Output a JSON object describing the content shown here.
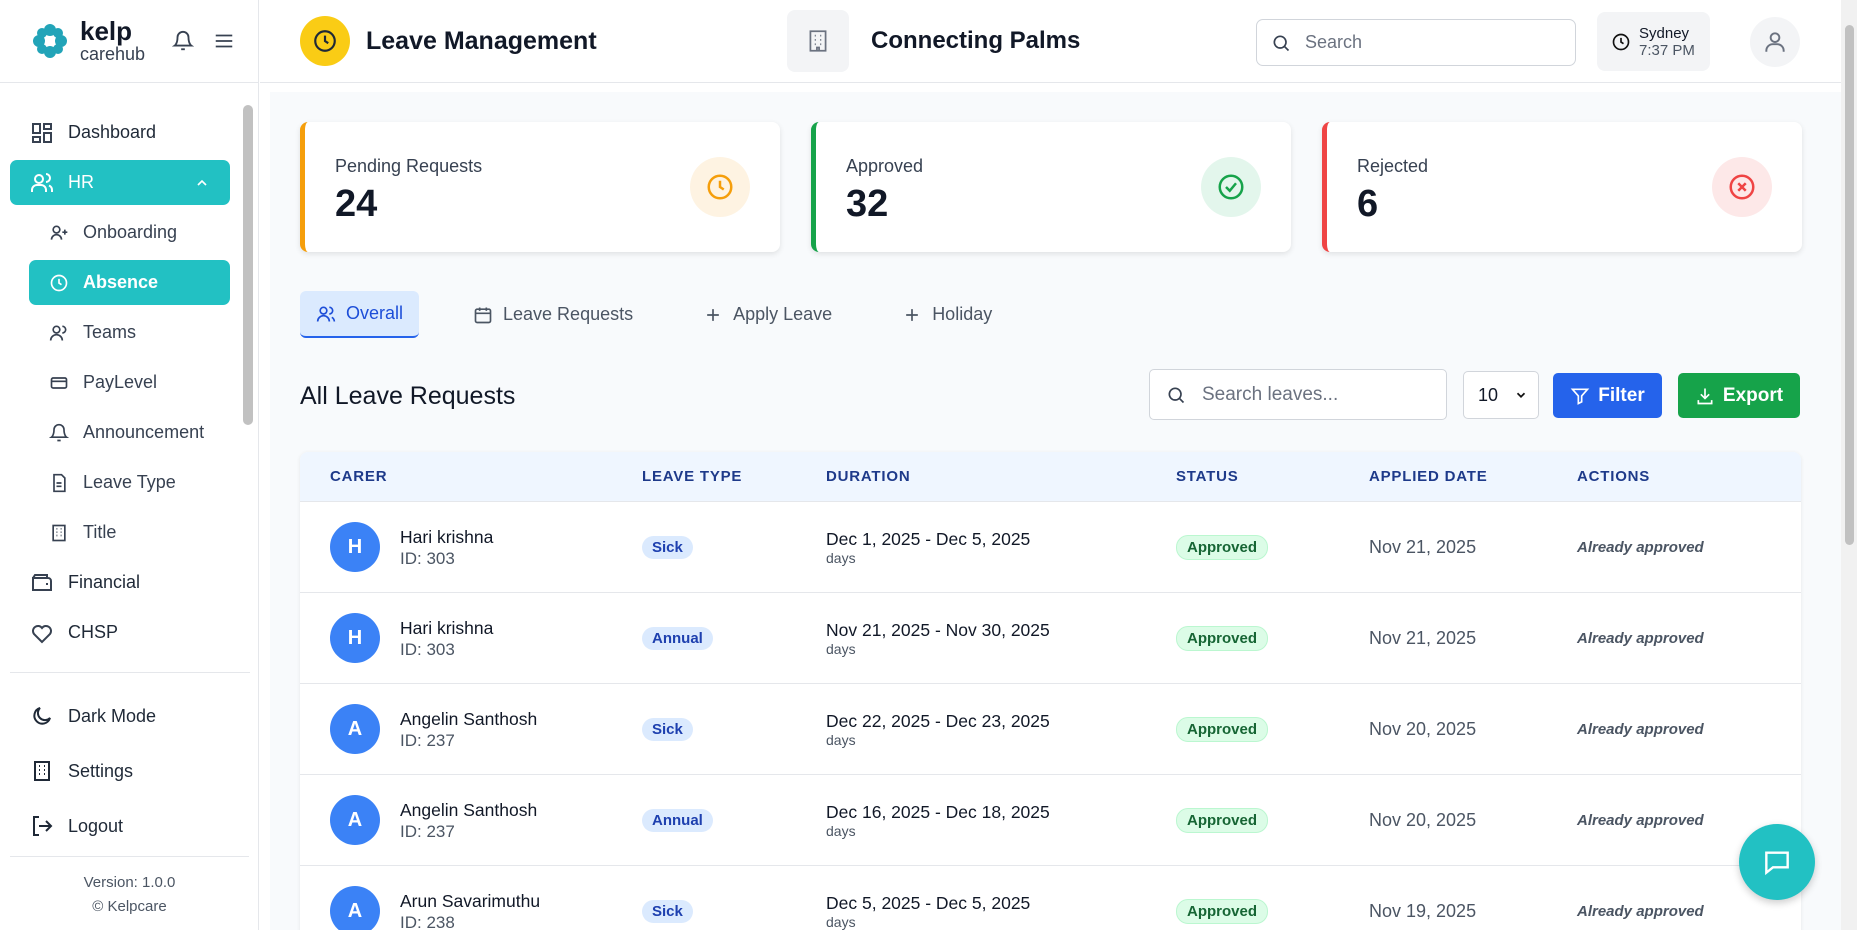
{
  "sidebar": {
    "brand": "kelp",
    "brand_sub": "carehub",
    "nav_top": [
      "Dashboard",
      "HR"
    ],
    "hr_items": [
      "Onboarding",
      "Absence",
      "Teams",
      "PayLevel",
      "Announcement",
      "Leave Type",
      "Title"
    ],
    "nav_bottom": [
      "Financial",
      "CHSP"
    ],
    "footer": [
      "Dark Mode",
      "Settings",
      "Logout"
    ],
    "version": "Version: 1.0.0",
    "copyright": "© Kelpcare"
  },
  "header": {
    "title": "Leave Management",
    "org": "Connecting Palms",
    "search": "Search",
    "city": "Sydney",
    "time": "7:37 PM"
  },
  "stats": [
    {
      "label": "Pending Requests",
      "value": "24"
    },
    {
      "label": "Approved",
      "value": "32"
    },
    {
      "label": "Rejected",
      "value": "6"
    }
  ],
  "tabs": [
    "Overall",
    "Leave Requests",
    "Apply Leave",
    "Holiday"
  ],
  "section": {
    "title": "All Leave Requests",
    "search": "Search leaves...",
    "page_size": "10",
    "filter": "Filter",
    "export": "Export"
  },
  "table": {
    "columns": [
      "CARER",
      "LEAVE TYPE",
      "DURATION",
      "STATUS",
      "APPLIED DATE",
      "ACTIONS"
    ],
    "rows": [
      {
        "initial": "H",
        "name": "Hari krishna",
        "id": "ID: 303",
        "type": "Sick",
        "duration": "Dec 1, 2025 - Dec 5, 2025",
        "unit": "days",
        "status": "Approved",
        "applied": "Nov 21, 2025",
        "action": "Already approved"
      },
      {
        "initial": "H",
        "name": "Hari krishna",
        "id": "ID: 303",
        "type": "Annual",
        "duration": "Nov 21, 2025 - Nov 30, 2025",
        "unit": "days",
        "status": "Approved",
        "applied": "Nov 21, 2025",
        "action": "Already approved"
      },
      {
        "initial": "A",
        "name": "Angelin Santhosh",
        "id": "ID: 237",
        "type": "Sick",
        "duration": "Dec 22, 2025 - Dec 23, 2025",
        "unit": "days",
        "status": "Approved",
        "applied": "Nov 20, 2025",
        "action": "Already approved"
      },
      {
        "initial": "A",
        "name": "Angelin Santhosh",
        "id": "ID: 237",
        "type": "Annual",
        "duration": "Dec 16, 2025 - Dec 18, 2025",
        "unit": "days",
        "status": "Approved",
        "applied": "Nov 20, 2025",
        "action": "Already approved"
      },
      {
        "initial": "A",
        "name": "Arun Savarimuthu",
        "id": "ID: 238",
        "type": "Sick",
        "duration": "Dec 5, 2025 - Dec 5, 2025",
        "unit": "days",
        "status": "Approved",
        "applied": "Nov 19, 2025",
        "action": "Already approved"
      }
    ]
  }
}
